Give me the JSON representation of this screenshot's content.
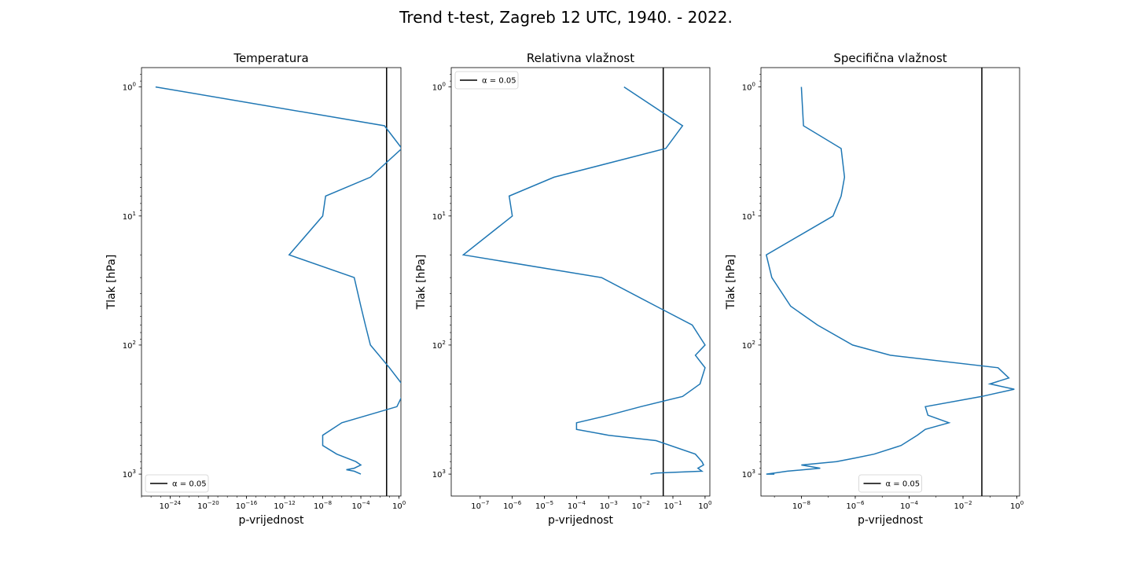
{
  "figure": {
    "suptitle": "Trend t-test, Zagreb 12 UTC, 1940. - 2022."
  },
  "chart_data": [
    {
      "type": "line",
      "title": "Temperatura",
      "xlabel": "p-vrijednost",
      "ylabel": "Tlak [hPa]",
      "xscale": "log",
      "yscale": "log",
      "y_inverted": true,
      "xlim_log10": [
        -27,
        0.2
      ],
      "ylim_log10": [
        3.17,
        -0.15
      ],
      "x_ticks": [
        {
          "exp": -24,
          "label": "10^-24"
        },
        {
          "exp": -20,
          "label": "10^-20"
        },
        {
          "exp": -16,
          "label": "10^-16"
        },
        {
          "exp": -12,
          "label": "10^-12"
        },
        {
          "exp": -8,
          "label": "10^-8"
        },
        {
          "exp": -4,
          "label": "10^-4"
        },
        {
          "exp": 0,
          "label": "10^0"
        }
      ],
      "y_ticks": [
        {
          "exp": 0,
          "label": "10^0"
        },
        {
          "exp": 1,
          "label": "10^1"
        },
        {
          "exp": 2,
          "label": "10^2"
        },
        {
          "exp": 3,
          "label": "10^3"
        }
      ],
      "alpha": 0.05,
      "legend": {
        "label": "α = 0.05",
        "loc": "lower left"
      },
      "grid": false,
      "series_color": "#1f77b4",
      "alpha_color": "#000000",
      "points": [
        [
          3e-26,
          1
        ],
        [
          0.03,
          2
        ],
        [
          2.0,
          3
        ],
        [
          0.001,
          5
        ],
        [
          2e-08,
          7
        ],
        [
          1e-08,
          10
        ],
        [
          3e-12,
          20
        ],
        [
          2e-05,
          30
        ],
        [
          0.0001,
          50
        ],
        [
          0.0003,
          70
        ],
        [
          0.001,
          100
        ],
        [
          0.1,
          150
        ],
        [
          2.0,
          200
        ],
        [
          2.0,
          250
        ],
        [
          0.6,
          300
        ],
        [
          1e-06,
          400
        ],
        [
          1e-08,
          500
        ],
        [
          1e-08,
          600
        ],
        [
          3e-07,
          700
        ],
        [
          3e-05,
          800
        ],
        [
          0.0001,
          850
        ],
        [
          2e-05,
          900
        ],
        [
          3e-06,
          925
        ],
        [
          2e-05,
          950
        ],
        [
          0.0001,
          1000
        ]
      ]
    },
    {
      "type": "line",
      "title": "Relativna vlažnost",
      "xlabel": "p-vrijednost",
      "ylabel": "Tlak [hPa]",
      "xscale": "log",
      "yscale": "log",
      "y_inverted": true,
      "xlim_log10": [
        -7.9,
        0.15
      ],
      "ylim_log10": [
        3.17,
        -0.15
      ],
      "x_ticks": [
        {
          "exp": -7,
          "label": "10^-7"
        },
        {
          "exp": -6,
          "label": "10^-6"
        },
        {
          "exp": -5,
          "label": "10^-5"
        },
        {
          "exp": -4,
          "label": "10^-4"
        },
        {
          "exp": -3,
          "label": "10^-3"
        },
        {
          "exp": -2,
          "label": "10^-2"
        },
        {
          "exp": -1,
          "label": "10^-1"
        },
        {
          "exp": 0,
          "label": "10^0"
        }
      ],
      "y_ticks": [
        {
          "exp": 0,
          "label": "10^0"
        },
        {
          "exp": 1,
          "label": "10^1"
        },
        {
          "exp": 2,
          "label": "10^2"
        },
        {
          "exp": 3,
          "label": "10^3"
        }
      ],
      "alpha": 0.05,
      "legend": {
        "label": "α = 0.05",
        "loc": "upper left"
      },
      "grid": false,
      "series_color": "#1f77b4",
      "alpha_color": "#000000",
      "points": [
        [
          0.003,
          1
        ],
        [
          0.2,
          2
        ],
        [
          0.06,
          3
        ],
        [
          2e-05,
          5
        ],
        [
          8e-07,
          7
        ],
        [
          1e-06,
          10
        ],
        [
          3e-08,
          20
        ],
        [
          0.0006,
          30
        ],
        [
          0.03,
          50
        ],
        [
          0.4,
          70
        ],
        [
          1.0,
          100
        ],
        [
          0.5,
          120
        ],
        [
          1.0,
          150
        ],
        [
          0.7,
          200
        ],
        [
          0.2,
          250
        ],
        [
          0.01,
          300
        ],
        [
          0.001,
          350
        ],
        [
          0.0001,
          400
        ],
        [
          0.0001,
          450
        ],
        [
          0.001,
          500
        ],
        [
          0.03,
          550
        ],
        [
          0.5,
          700
        ],
        [
          0.8,
          800
        ],
        [
          0.9,
          850
        ],
        [
          0.6,
          900
        ],
        [
          0.8,
          950
        ],
        [
          0.03,
          980
        ],
        [
          0.02,
          1000
        ]
      ]
    },
    {
      "type": "line",
      "title": "Specifična vlažnost",
      "xlabel": "p-vrijednost",
      "ylabel": "Tlak [hPa]",
      "xscale": "log",
      "yscale": "log",
      "y_inverted": true,
      "xlim_log10": [
        -9.5,
        0.1
      ],
      "ylim_log10": [
        3.17,
        -0.15
      ],
      "x_ticks": [
        {
          "exp": -8,
          "label": "10^-8"
        },
        {
          "exp": -6,
          "label": "10^-6"
        },
        {
          "exp": -4,
          "label": "10^-4"
        },
        {
          "exp": -2,
          "label": "10^-2"
        },
        {
          "exp": 0,
          "label": "10^0"
        }
      ],
      "y_ticks": [
        {
          "exp": 0,
          "label": "10^0"
        },
        {
          "exp": 1,
          "label": "10^1"
        },
        {
          "exp": 2,
          "label": "10^2"
        },
        {
          "exp": 3,
          "label": "10^3"
        }
      ],
      "alpha": 0.05,
      "legend": {
        "label": "α = 0.05",
        "loc": "lower center"
      },
      "grid": false,
      "series_color": "#1f77b4",
      "alpha_color": "#000000",
      "points": [
        [
          1e-08,
          1
        ],
        [
          1.2e-08,
          2
        ],
        [
          3e-07,
          3
        ],
        [
          4e-07,
          5
        ],
        [
          3e-07,
          7
        ],
        [
          1.5e-07,
          10
        ],
        [
          5e-10,
          20
        ],
        [
          8e-10,
          30
        ],
        [
          4e-09,
          50
        ],
        [
          4e-08,
          70
        ],
        [
          8e-07,
          100
        ],
        [
          2e-05,
          120
        ],
        [
          0.2,
          150
        ],
        [
          0.5,
          180
        ],
        [
          0.1,
          200
        ],
        [
          0.8,
          220
        ],
        [
          0.05,
          250
        ],
        [
          0.0004,
          300
        ],
        [
          0.0005,
          350
        ],
        [
          0.003,
          400
        ],
        [
          0.0004,
          450
        ],
        [
          0.0002,
          500
        ],
        [
          5e-05,
          600
        ],
        [
          5e-06,
          700
        ],
        [
          1e-06,
          750
        ],
        [
          2e-07,
          800
        ],
        [
          1e-08,
          850
        ],
        [
          5e-08,
          900
        ],
        [
          3e-09,
          950
        ],
        [
          1e-09,
          980
        ],
        [
          5e-10,
          1000
        ],
        [
          1e-09,
          1000
        ]
      ]
    }
  ]
}
